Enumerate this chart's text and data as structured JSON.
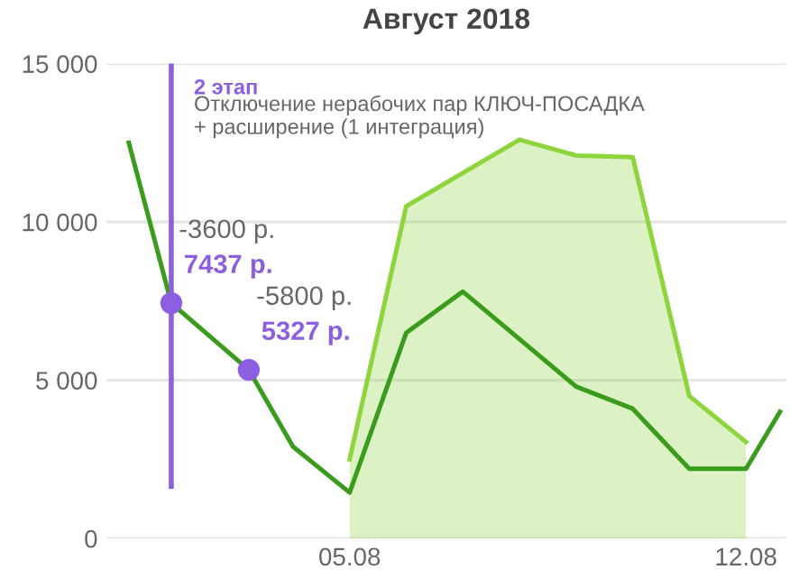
{
  "chart_data": {
    "type": "line",
    "title": "Август 2018",
    "xlim": [
      "2018-07-31T17:00",
      "2018-08-12T17:00"
    ],
    "xticks": [
      {
        "value": "2018-08-05",
        "label": "05.08"
      },
      {
        "value": "2018-08-12",
        "label": "12.08"
      }
    ],
    "ylim": [
      0,
      15000
    ],
    "yticks": [
      0,
      {
        "value": 5000,
        "label": "5 000"
      },
      {
        "value": 10000,
        "label": "10 000"
      },
      {
        "value": 15000,
        "label": "15 000"
      }
    ],
    "grid": "y",
    "series": [
      {
        "type": "area",
        "color": "#8ed43c",
        "x": [
          "2018-08-05",
          "2018-08-06",
          "2018-08-08",
          "2018-08-09",
          "2018-08-10",
          "2018-08-11",
          "2018-08-12"
        ],
        "values": [
          2500,
          10500,
          12600,
          12100,
          12050,
          4500,
          3050
        ]
      },
      {
        "color": "#3a9c1c",
        "x": [
          "2018-08-01T02:24",
          "2018-08-01T20:24",
          "2018-08-03T05:15",
          "2018-08-04",
          "2018-08-05",
          "2018-08-06",
          "2018-08-07",
          "2018-08-09",
          "2018-08-10",
          "2018-08-11",
          "2018-08-12",
          "2018-08-12T14:24"
        ],
        "values": [
          12500,
          7437,
          5327,
          2900,
          1450,
          6500,
          7800,
          4800,
          4100,
          2200,
          2200,
          4000
        ]
      },
      {
        "type": "scatter",
        "color": "#8c5ee0",
        "x": [
          "2018-08-01T20:24",
          "2018-08-03T05:15"
        ],
        "values": [
          7437,
          5327
        ],
        "value_labels": [
          "7437 р.",
          "5327 р."
        ]
      }
    ],
    "ref_lines": [
      {
        "axis": "x",
        "value": "2018-08-01T20:24",
        "label": "2 этап",
        "color": "#8c5ee0"
      }
    ],
    "annotations": [
      {
        "text": "Отключение нерабочих пар КЛЮЧ-ПОСАДКА\n+ расширение (1 интеграция)",
        "x": "2018-08-01T20:24",
        "y": 14000
      },
      {
        "text": "-3600 р.",
        "x": "2018-08-01T20:24",
        "y": 7437
      },
      {
        "text": "-5800 р.",
        "x": "2018-08-03T05:15",
        "y": 5327
      }
    ]
  }
}
